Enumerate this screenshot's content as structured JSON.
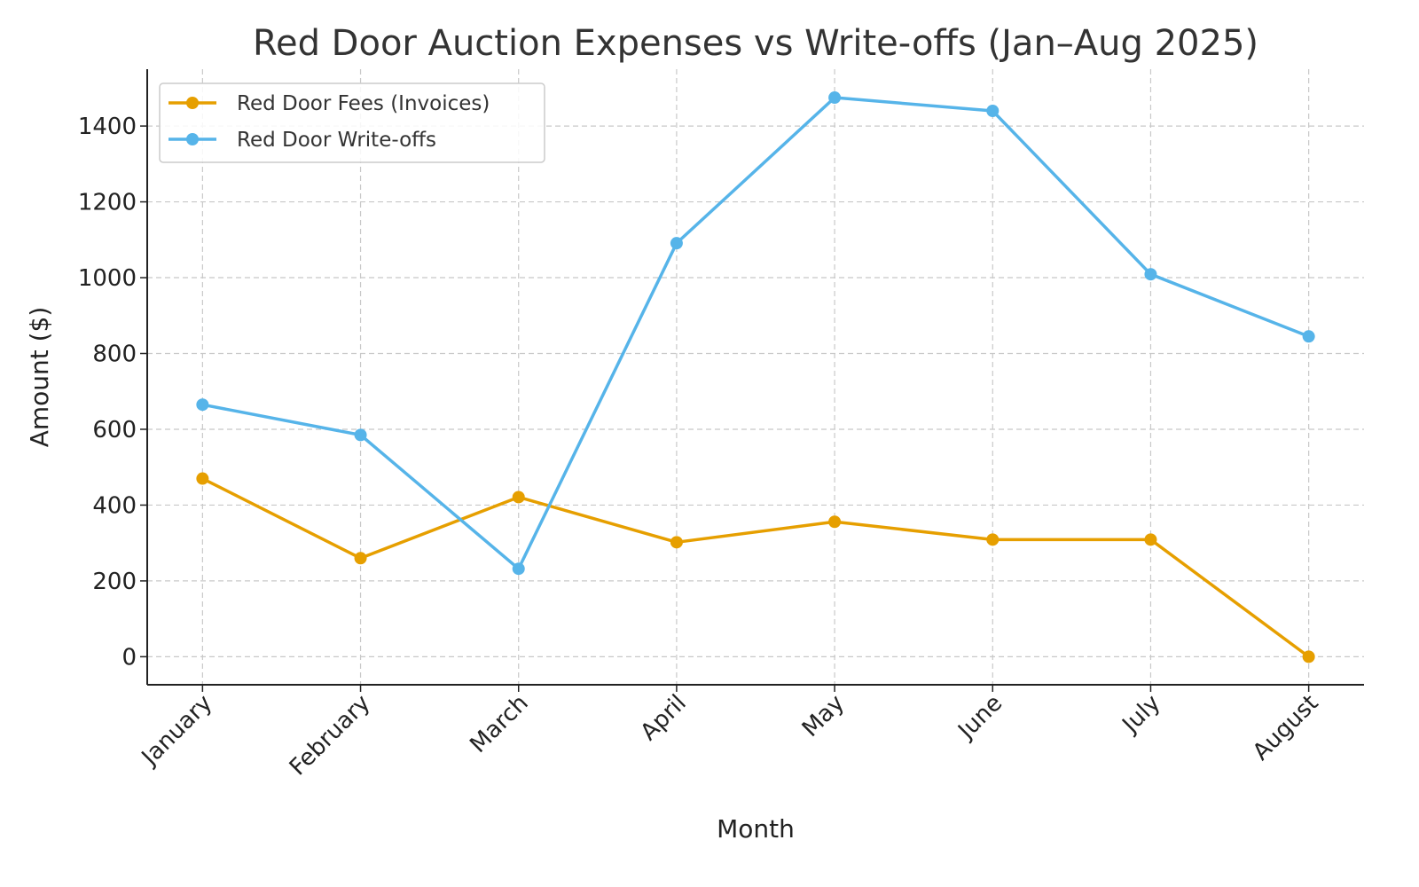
{
  "chart_data": {
    "type": "line",
    "title": "Red Door Auction Expenses vs Write-offs (Jan–Aug 2025)",
    "xlabel": "Month",
    "ylabel": "Amount ($)",
    "categories": [
      "January",
      "February",
      "March",
      "April",
      "May",
      "June",
      "July",
      "August"
    ],
    "yticks": [
      0,
      200,
      400,
      600,
      800,
      1000,
      1200,
      1400
    ],
    "ylim": [
      -74,
      1550
    ],
    "grid": true,
    "legend_position": "top-left",
    "series": [
      {
        "name": "Red Door Fees (Invoices)",
        "color": "#E69F00",
        "values": [
          470,
          260,
          421,
          302,
          356,
          309,
          309,
          0
        ]
      },
      {
        "name": "Red Door Write-offs",
        "color": "#56B4E9",
        "values": [
          665,
          585,
          232,
          1091,
          1475,
          1440,
          1009,
          845
        ]
      }
    ]
  }
}
